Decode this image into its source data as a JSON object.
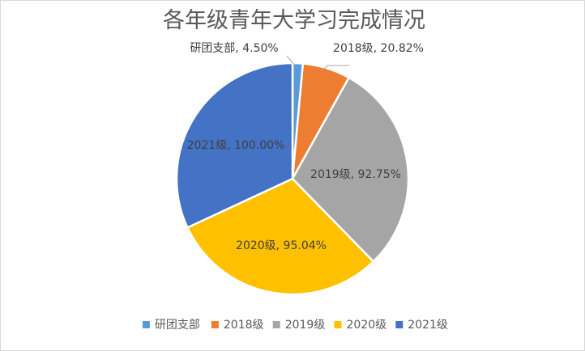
{
  "chart_data": {
    "type": "pie",
    "title": "各年级青年大学习完成情况",
    "categories": [
      "研团支部",
      "2018级",
      "2019级",
      "2020级",
      "2021级"
    ],
    "values": [
      4.5,
      20.82,
      92.75,
      95.04,
      100.0
    ],
    "labels": [
      "4.50%",
      "20.82%",
      "92.75%",
      "95.04%",
      "100.00%"
    ],
    "colors": [
      "#5B9BD5",
      "#ED7D31",
      "#A5A5A5",
      "#FFC000",
      "#4472C4"
    ],
    "legend_position": "bottom",
    "start_angle_deg": 0,
    "direction": "clockwise"
  }
}
